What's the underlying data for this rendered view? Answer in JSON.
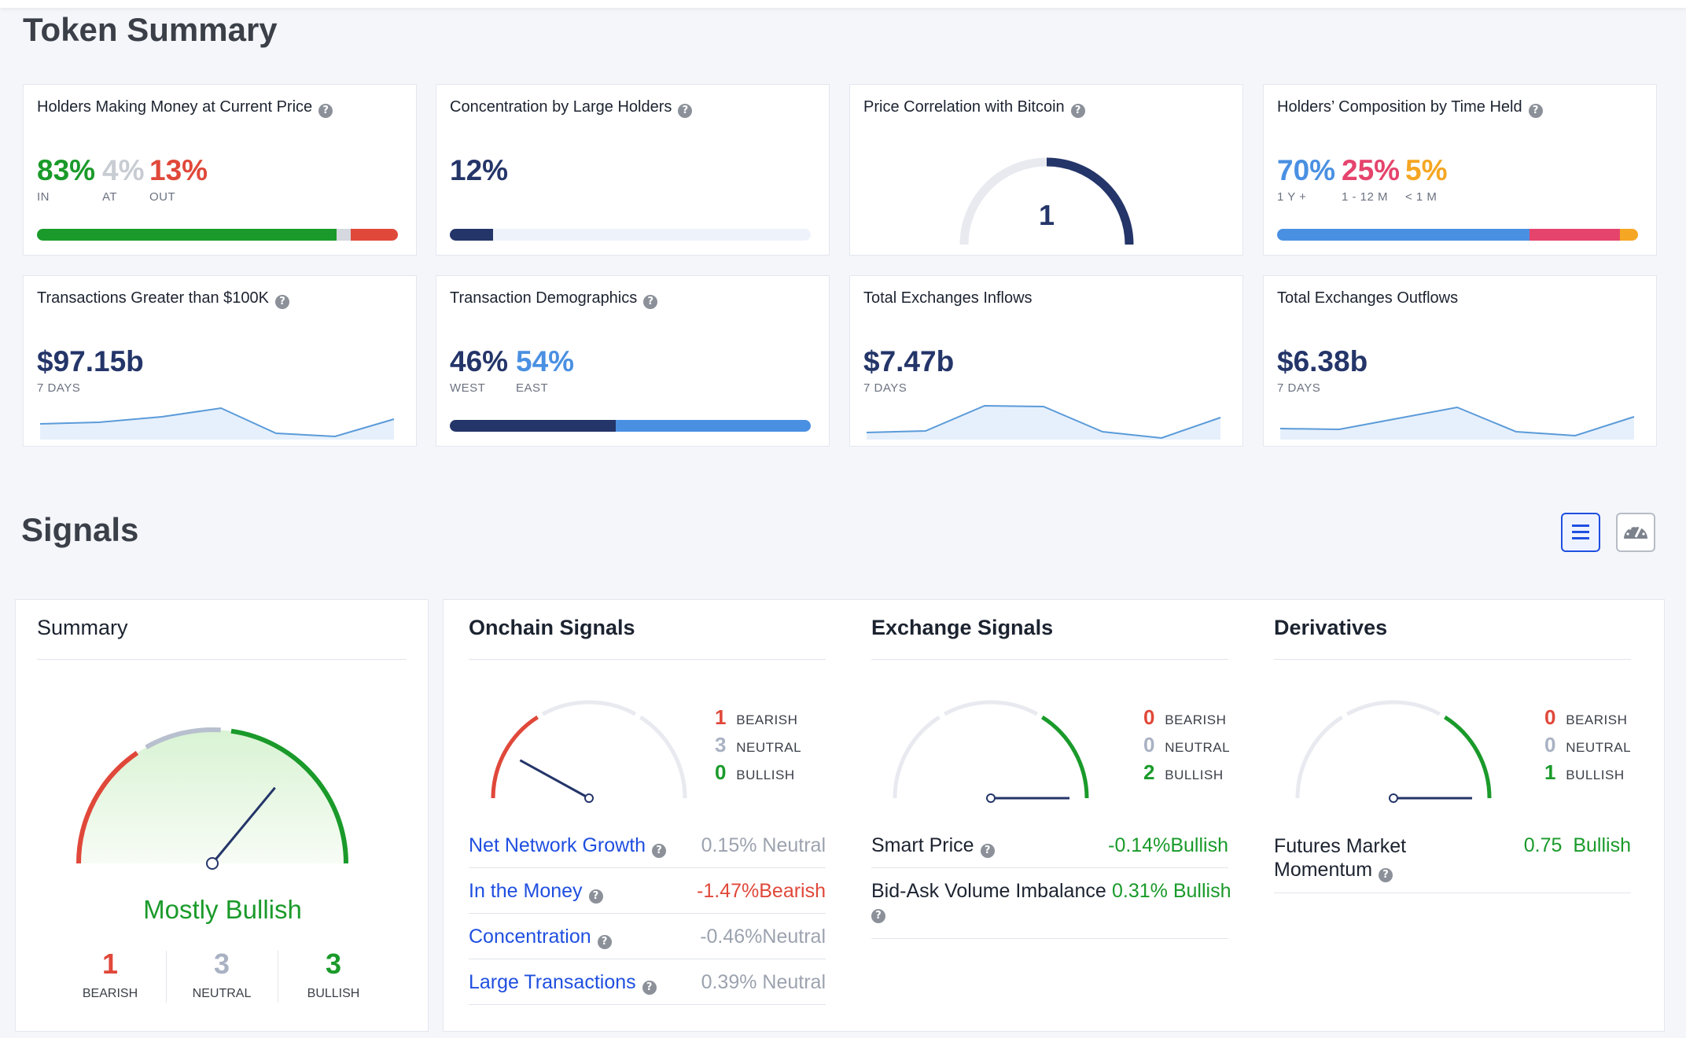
{
  "token_summary": {
    "title": "Token Summary",
    "cards": {
      "holders_money": {
        "title": "Holders Making Money at Current Price",
        "in": "83%",
        "at": "4%",
        "out": "13%",
        "in_label": "IN",
        "at_label": "AT",
        "out_label": "OUT",
        "bar": [
          83,
          4,
          13
        ]
      },
      "concentration": {
        "title": "Concentration by Large Holders",
        "value": "12%",
        "fill": 12
      },
      "correlation": {
        "title": "Price Correlation with Bitcoin",
        "value": "1"
      },
      "composition": {
        "title": "Holders’ Composition by Time Held",
        "v1": "70%",
        "v2": "25%",
        "v3": "5%",
        "l1": "1 Y +",
        "l2": "1 - 12 M",
        "l3": "< 1 M",
        "bar": [
          70,
          25,
          5
        ]
      },
      "tx100k": {
        "title": "Transactions Greater than $100K",
        "value": "$97.15b",
        "sub": "7 DAYS"
      },
      "demographics": {
        "title": "Transaction Demographics",
        "west": "46%",
        "east": "54%",
        "west_label": "WEST",
        "east_label": "EAST",
        "bar": [
          46,
          54
        ]
      },
      "inflows": {
        "title": "Total Exchanges Inflows",
        "value": "$7.47b",
        "sub": "7 DAYS"
      },
      "outflows": {
        "title": "Total Exchanges Outflows",
        "value": "$6.38b",
        "sub": "7 DAYS"
      }
    }
  },
  "signals": {
    "title": "Signals",
    "view_toggle": {
      "list_icon": "list-icon",
      "gauge_icon": "speedometer-icon",
      "active": "list"
    },
    "summary": {
      "title": "Summary",
      "verdict": "Mostly Bullish",
      "bearish": "1",
      "neutral": "3",
      "bullish": "3",
      "bearish_label": "BEARISH",
      "neutral_label": "NEUTRAL",
      "bullish_label": "BULLISH",
      "needle_fraction": 0.72
    },
    "onchain": {
      "title": "Onchain Signals",
      "bearish": "1",
      "neutral": "3",
      "bullish": "0",
      "needle_fraction": 0.16,
      "rows": [
        {
          "label": "Net Network Growth",
          "value": "0.15%",
          "status": "Neutral"
        },
        {
          "label": "In the Money",
          "value": "-1.47%",
          "status": "Bearish"
        },
        {
          "label": "Concentration",
          "value": "-0.46%",
          "status": "Neutral"
        },
        {
          "label": "Large Transactions",
          "value": "0.39%",
          "status": "Neutral"
        }
      ]
    },
    "exchange": {
      "title": "Exchange Signals",
      "bearish": "0",
      "neutral": "0",
      "bullish": "2",
      "needle_fraction": 1.0,
      "rows": [
        {
          "label": "Smart Price",
          "value": "-0.14%",
          "status": "Bullish"
        },
        {
          "label": "Bid-Ask Volume Imbalance",
          "value": "0.31%",
          "status": "Bullish"
        }
      ]
    },
    "derivatives": {
      "title": "Derivatives",
      "bearish": "0",
      "neutral": "0",
      "bullish": "1",
      "needle_fraction": 1.0,
      "rows": [
        {
          "label_line1": "Futures Market",
          "label_line2": "Momentum",
          "value": "0.75",
          "status": "Bullish"
        }
      ]
    },
    "count_labels": {
      "bearish": "BEARISH",
      "neutral": "NEUTRAL",
      "bullish": "BULLISH"
    }
  },
  "colors": {
    "green": "#1a9a2a",
    "red": "#e0483a",
    "navy": "#243569",
    "blue": "#4a90e2",
    "pink": "#e5446d",
    "orange": "#f5a623",
    "link": "#1f4fe0"
  }
}
